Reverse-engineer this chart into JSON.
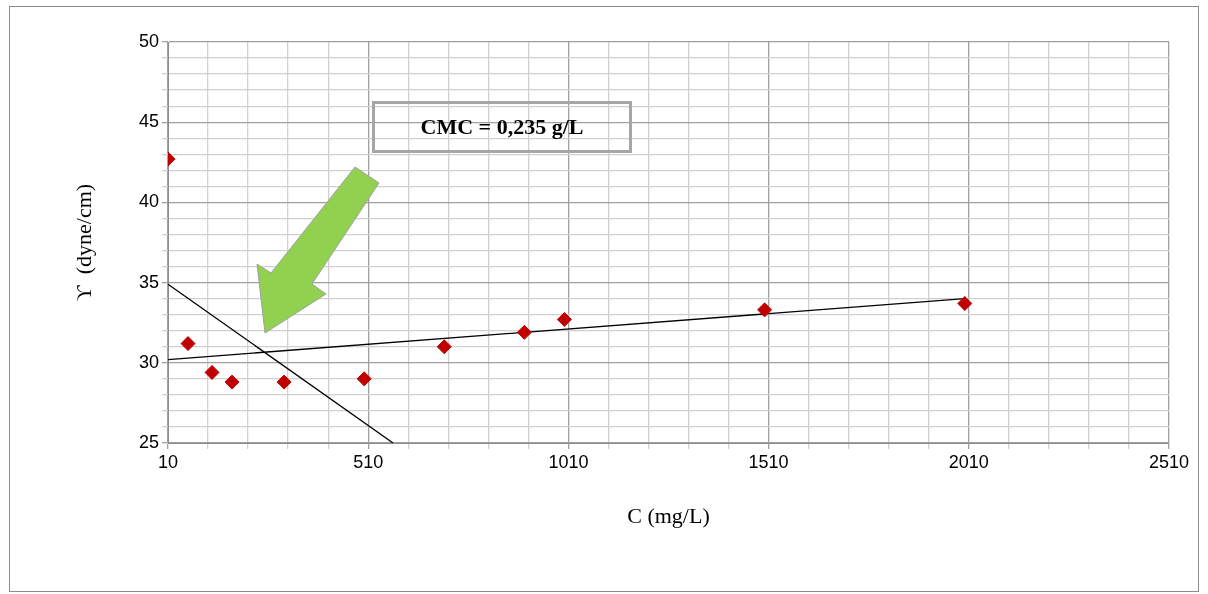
{
  "chart_data": {
    "type": "scatter",
    "xlabel": "C (mg/L)",
    "ylabel": "ϒ  (dyne/cm)",
    "xlim": [
      10,
      2510
    ],
    "ylim": [
      25,
      50
    ],
    "xticks": [
      10,
      {
        "value": 110,
        "label": null
      },
      {
        "value": 210,
        "label": null
      },
      {
        "value": 310,
        "label": null
      },
      {
        "value": 410,
        "label": null
      },
      510,
      {
        "value": 610,
        "label": null
      },
      {
        "value": 710,
        "label": null
      },
      {
        "value": 810,
        "label": null
      },
      {
        "value": 910,
        "label": null
      },
      1010,
      {
        "value": 1110,
        "label": null
      },
      {
        "value": 1210,
        "label": null
      },
      {
        "value": 1310,
        "label": null
      },
      {
        "value": 1410,
        "label": null
      },
      1510,
      {
        "value": 1610,
        "label": null
      },
      {
        "value": 1710,
        "label": null
      },
      {
        "value": 1810,
        "label": null
      },
      {
        "value": 1910,
        "label": null
      },
      2010,
      {
        "value": 2110,
        "label": null
      },
      {
        "value": 2210,
        "label": null
      },
      {
        "value": 2310,
        "label": null
      },
      {
        "value": 2410,
        "label": null
      },
      2510
    ],
    "yticks": [
      25,
      {
        "value": 26,
        "label": null
      },
      {
        "value": 27,
        "label": null
      },
      {
        "value": 28,
        "label": null
      },
      {
        "value": 29,
        "label": null
      },
      30,
      {
        "value": 31,
        "label": null
      },
      {
        "value": 32,
        "label": null
      },
      {
        "value": 33,
        "label": null
      },
      {
        "value": 34,
        "label": null
      },
      35,
      {
        "value": 36,
        "label": null
      },
      {
        "value": 37,
        "label": null
      },
      {
        "value": 38,
        "label": null
      },
      {
        "value": 39,
        "label": null
      },
      40,
      {
        "value": 41,
        "label": null
      },
      {
        "value": 42,
        "label": null
      },
      {
        "value": 43,
        "label": null
      },
      {
        "value": 44,
        "label": null
      },
      45,
      {
        "value": 46,
        "label": null
      },
      {
        "value": 47,
        "label": null
      },
      {
        "value": 48,
        "label": null
      },
      {
        "value": 49,
        "label": null
      },
      50
    ],
    "grid": true,
    "marker": "diamond",
    "annotations": [
      "CMC = 0,235 g/L"
    ],
    "series": [
      {
        "type": "scatter",
        "color": "#c00000",
        "x": [
          10,
          60,
          120,
          170,
          300,
          500
        ],
        "values": [
          42.7,
          31.2,
          29.4,
          28.8,
          28.8,
          29.0
        ]
      },
      {
        "type": "scatter",
        "color": "#c00000",
        "x": [
          700,
          900,
          1000,
          1500,
          2000
        ],
        "values": [
          31.0,
          31.9,
          32.7,
          33.3,
          33.7
        ]
      },
      {
        "type": "line",
        "color": "#000000",
        "marker": "none",
        "x": [
          10,
          2000
        ],
        "values": [
          30.2,
          34.0
        ]
      },
      {
        "type": "line",
        "color": "#000000",
        "marker": "none",
        "x": [
          10,
          572
        ],
        "values": [
          34.9,
          25
        ]
      }
    ]
  }
}
